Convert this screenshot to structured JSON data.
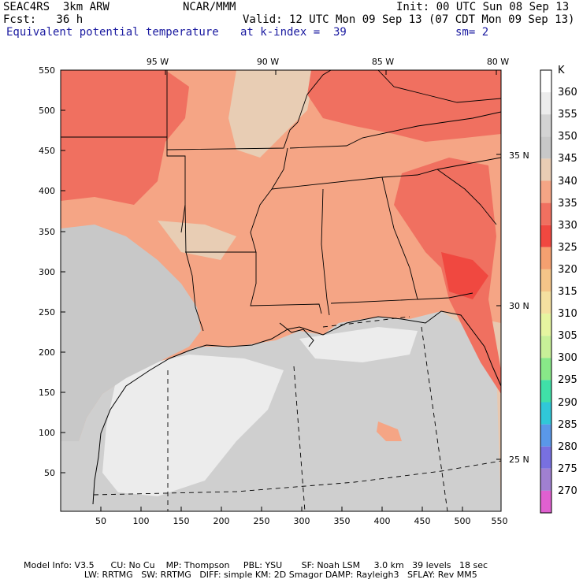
{
  "header": {
    "line1_left": "SEAC4RS  3km ARW",
    "line1_center": "NCAR/MMM",
    "line1_right": "Init: 00 UTC Sun 08 Sep 13",
    "line2_left": "Fcst:   36 h",
    "line2_right": "Valid: 12 UTC Mon 09 Sep 13 (07 CDT Mon 09 Sep 13)",
    "line3_field": "Equivalent potential temperature",
    "line3_level": "at k-index =  39",
    "line3_smooth": "sm= 2"
  },
  "axes": {
    "y_ticks": [
      "550",
      "500",
      "450",
      "400",
      "350",
      "300",
      "250",
      "200",
      "150",
      "100",
      "50"
    ],
    "x_ticks": [
      "50",
      "100",
      "150",
      "200",
      "250",
      "300",
      "350",
      "400",
      "450",
      "500",
      "550"
    ],
    "lon_labels": [
      "95 W",
      "90 W",
      "85 W",
      "80 W"
    ],
    "lat_labels": [
      "35 N",
      "30 N",
      "25 N"
    ]
  },
  "colorbar": {
    "unit": "K",
    "levels": [
      "360",
      "355",
      "350",
      "345",
      "340",
      "335",
      "330",
      "325",
      "320",
      "315",
      "310",
      "305",
      "300",
      "295",
      "290",
      "285",
      "280",
      "275",
      "270"
    ],
    "colors": [
      "#ffffff",
      "#ececec",
      "#d3d3d3",
      "#c8c8c8",
      "#e8cdb4",
      "#f5a585",
      "#f07060",
      "#f04840",
      "#f5a070",
      "#f5c588",
      "#f5e0a0",
      "#e6f5a0",
      "#c8f098",
      "#88e888",
      "#40e0a8",
      "#30c8d8",
      "#5a98e8",
      "#7870e0",
      "#a080d0",
      "#e060d0"
    ]
  },
  "footer": {
    "line1": "Model Info: V3.5      CU: No Cu    MP: Thompson     PBL: YSU       SF: Noah LSM     3.0 km   39 levels   18 sec",
    "line2": "                      LW: RRTMG   SW: RRTMG   DIFF: simple KM: 2D Smagor DAMP: Rayleigh3   SFLAY: Rev MM5"
  }
}
